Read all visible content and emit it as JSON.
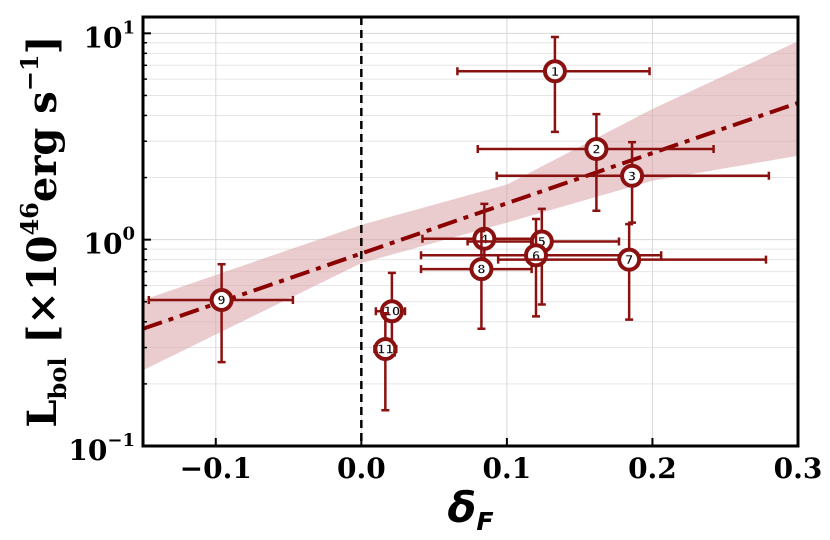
{
  "chart_data": {
    "type": "scatter",
    "xlabel": [
      {
        "text": "δ"
      },
      {
        "text": "F",
        "shift": "sub"
      }
    ],
    "ylabel": [
      {
        "text": "L"
      },
      {
        "text": "bol",
        "shift": "sub"
      },
      {
        "text": " [×10"
      },
      {
        "text": "46",
        "shift": "super"
      },
      {
        "text": "erg s"
      },
      {
        "text": "−1",
        "shift": "super"
      },
      {
        "text": "]"
      }
    ],
    "xlim": [
      -0.15,
      0.3
    ],
    "ylim": [
      0.1,
      12
    ],
    "yscale": "log",
    "xticks": [
      {
        "value": -0.1,
        "label": "−0.1"
      },
      {
        "value": 0,
        "label": "0.0"
      },
      0.1,
      0.2,
      0.3
    ],
    "yticks": [
      {
        "value": 0.1,
        "label": "10",
        "exponent": "−1"
      },
      {
        "value": 1,
        "label": "10",
        "exponent": "0"
      },
      {
        "value": 10,
        "label": "10",
        "exponent": "1"
      }
    ],
    "yminor": [
      0.2,
      0.3,
      0.4,
      0.5,
      0.6,
      0.7,
      0.8,
      0.9,
      2,
      3,
      4,
      5,
      6,
      7,
      8,
      9
    ],
    "grid": true,
    "vline": 0,
    "series": [
      {
        "color": "#8b1010",
        "labels": [
          "1",
          "2",
          "3",
          "4",
          "5",
          "6",
          "7",
          "8",
          "9",
          "10",
          "11"
        ],
        "x": [
          0.133,
          0.1615,
          0.186,
          0.0845,
          0.124,
          0.12,
          0.184,
          0.0825,
          -0.096,
          0.021,
          0.0165
        ],
        "y": [
          6.55,
          2.75,
          2.04,
          1.01,
          0.98,
          0.84,
          0.8,
          0.72,
          0.51,
          0.45,
          0.295
        ],
        "x_lower": [
          0.066,
          0.08,
          0.093,
          0.042,
          0.073,
          0.041,
          0.094,
          0.041,
          -0.146,
          0.01,
          0.009
        ],
        "x_upper": [
          0.198,
          0.242,
          0.28,
          0.127,
          0.177,
          0.206,
          0.278,
          0.117,
          -0.047,
          0.03,
          0.024
        ],
        "y_lower": [
          3.33,
          1.38,
          1.21,
          0.76,
          0.485,
          0.425,
          0.41,
          0.37,
          0.255,
          0.275,
          0.149
        ],
        "y_upper": [
          9.6,
          4.06,
          2.97,
          1.49,
          1.41,
          1.26,
          1.19,
          1.1,
          0.76,
          0.69,
          0.44
        ]
      }
    ],
    "fit": {
      "color": "#8b0000",
      "x": [
        -0.15,
        0.3
      ],
      "y": [
        0.37,
        4.6
      ]
    },
    "band": {
      "color": "#d9a3a6",
      "x": [
        -0.15,
        0,
        0.1,
        0.2,
        0.3
      ],
      "lower": [
        0.233,
        0.77,
        1.21,
        1.93,
        2.55
      ],
      "upper": [
        0.51,
        1.18,
        1.85,
        4.3,
        9.15
      ]
    }
  }
}
